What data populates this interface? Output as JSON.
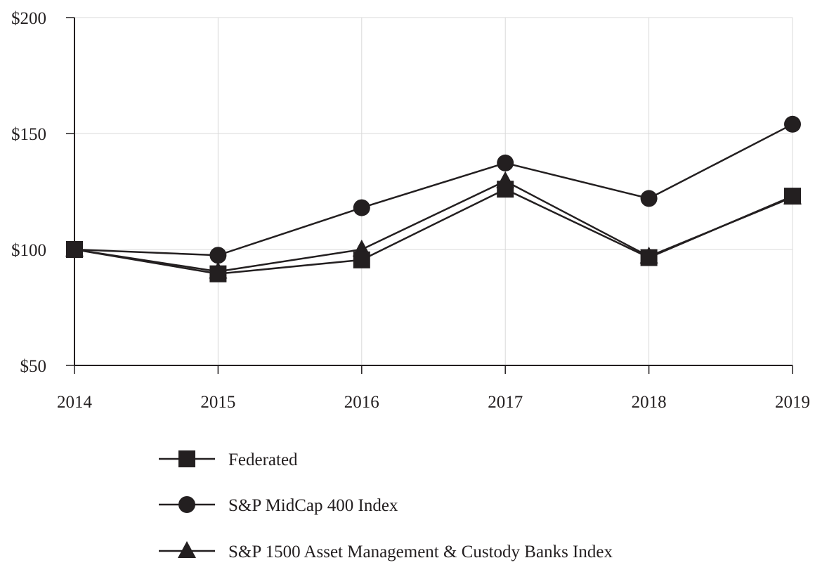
{
  "chart_data": {
    "type": "line",
    "title": "",
    "xlabel": "",
    "ylabel": "",
    "x": [
      "2014",
      "2015",
      "2016",
      "2017",
      "2018",
      "2019"
    ],
    "ylim": [
      50,
      200
    ],
    "yticks": [
      50,
      100,
      150,
      200
    ],
    "ytick_labels": [
      "$50",
      "$100",
      "$150",
      "$200"
    ],
    "grid": true,
    "legend_position": "bottom",
    "colors": {
      "line": "#231f20",
      "grid": "#d9d9d9",
      "axis": "#231f20"
    },
    "series": [
      {
        "name": "Federated",
        "marker": "square",
        "values": [
          100,
          89.5,
          95.5,
          126,
          96.5,
          123
        ]
      },
      {
        "name": "S&P MidCap 400 Index",
        "marker": "circle",
        "values": [
          100,
          97.5,
          118,
          137.3,
          122,
          154
        ]
      },
      {
        "name": "S&P 1500 Asset Management & Custody Banks Index",
        "marker": "triangle",
        "values": [
          100,
          90.5,
          100,
          129.5,
          97,
          122.5
        ]
      }
    ]
  }
}
